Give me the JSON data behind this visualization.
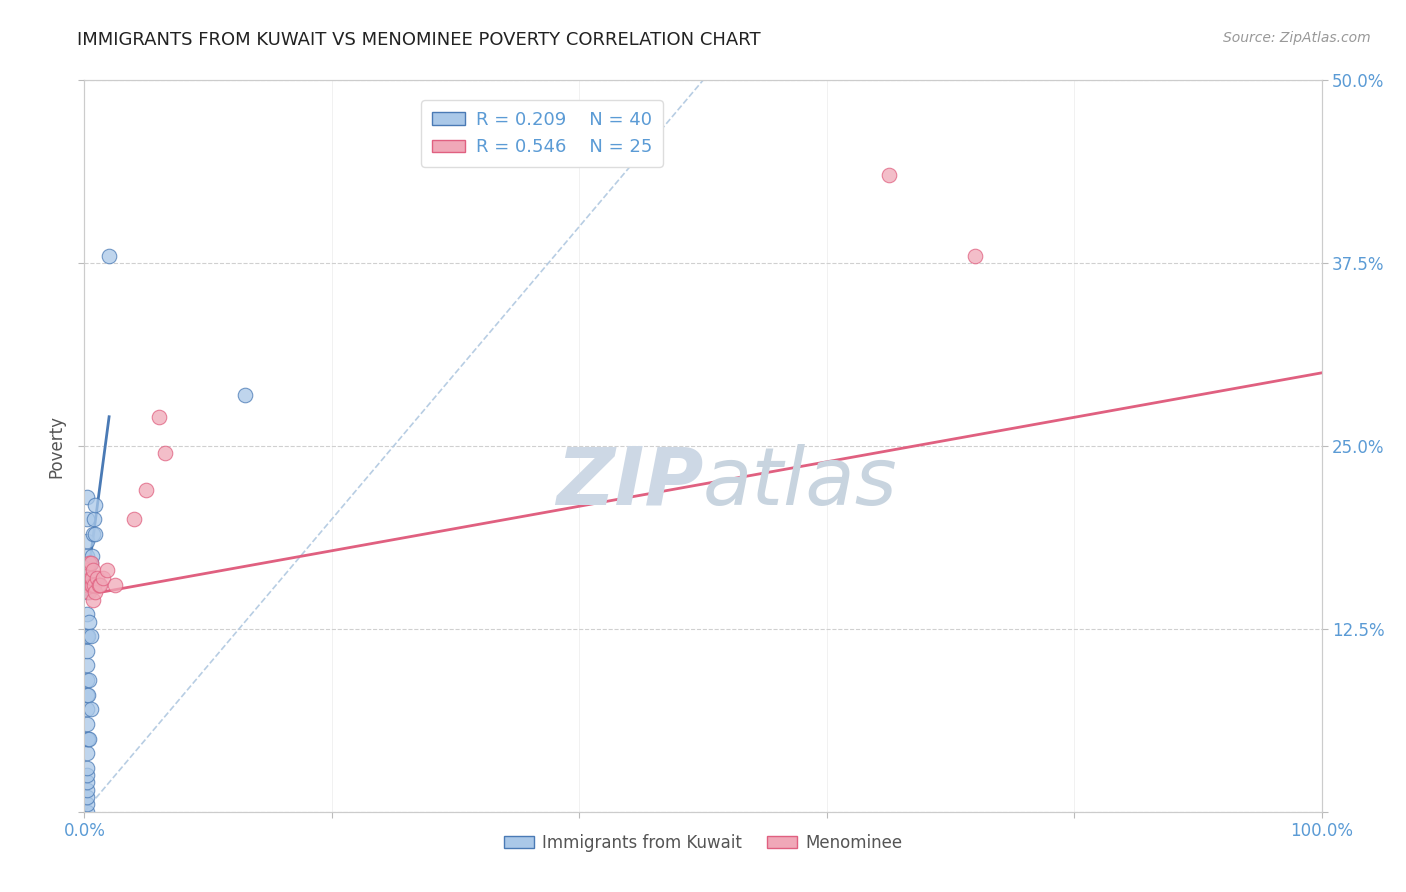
{
  "title": "IMMIGRANTS FROM KUWAIT VS MENOMINEE POVERTY CORRELATION CHART",
  "source": "Source: ZipAtlas.com",
  "ylabel": "Poverty",
  "xlim": [
    0.0,
    1.0
  ],
  "ylim": [
    0.0,
    0.5
  ],
  "yticks": [
    0.0,
    0.125,
    0.25,
    0.375,
    0.5
  ],
  "ytick_labels_right": [
    "",
    "12.5%",
    "25.0%",
    "37.5%",
    "50.0%"
  ],
  "xticks": [
    0.0,
    0.2,
    0.4,
    0.6,
    0.8,
    1.0
  ],
  "xtick_labels": [
    "0.0%",
    "",
    "",
    "",
    "",
    "100.0%"
  ],
  "legend_r1": "R = 0.209",
  "legend_n1": "N = 40",
  "legend_r2": "R = 0.546",
  "legend_n2": "N = 25",
  "blue_color": "#aac8e8",
  "pink_color": "#f0a8b8",
  "blue_line_color": "#4a7ab5",
  "pink_line_color": "#e06080",
  "dashed_line_color": "#b0c8e0",
  "axis_color": "#5b9bd5",
  "grid_color": "#d0d0d0",
  "background_color": "#ffffff",
  "watermark_color": "#cdd8e5",
  "blue_scatter_x": [
    0.002,
    0.002,
    0.002,
    0.002,
    0.002,
    0.002,
    0.002,
    0.002,
    0.002,
    0.002,
    0.002,
    0.002,
    0.002,
    0.002,
    0.002,
    0.002,
    0.002,
    0.002,
    0.002,
    0.002,
    0.002,
    0.002,
    0.002,
    0.003,
    0.003,
    0.003,
    0.004,
    0.004,
    0.004,
    0.004,
    0.005,
    0.005,
    0.005,
    0.006,
    0.007,
    0.008,
    0.009,
    0.009,
    0.02,
    0.13
  ],
  "blue_scatter_y": [
    0.0,
    0.005,
    0.01,
    0.015,
    0.02,
    0.025,
    0.03,
    0.04,
    0.05,
    0.06,
    0.07,
    0.08,
    0.09,
    0.1,
    0.11,
    0.12,
    0.135,
    0.15,
    0.165,
    0.175,
    0.185,
    0.2,
    0.215,
    0.05,
    0.08,
    0.12,
    0.05,
    0.09,
    0.13,
    0.17,
    0.07,
    0.12,
    0.17,
    0.175,
    0.19,
    0.2,
    0.19,
    0.21,
    0.38,
    0.285
  ],
  "pink_scatter_x": [
    0.002,
    0.003,
    0.004,
    0.004,
    0.005,
    0.005,
    0.005,
    0.006,
    0.006,
    0.007,
    0.007,
    0.008,
    0.009,
    0.01,
    0.012,
    0.013,
    0.015,
    0.018,
    0.025,
    0.04,
    0.05,
    0.06,
    0.065,
    0.65,
    0.72
  ],
  "pink_scatter_y": [
    0.155,
    0.165,
    0.15,
    0.17,
    0.155,
    0.16,
    0.17,
    0.155,
    0.16,
    0.145,
    0.165,
    0.155,
    0.15,
    0.16,
    0.155,
    0.155,
    0.16,
    0.165,
    0.155,
    0.2,
    0.22,
    0.27,
    0.245,
    0.435,
    0.38
  ],
  "blue_trend_x": [
    0.002,
    0.02
  ],
  "blue_trend_y": [
    0.155,
    0.27
  ],
  "pink_trend_x": [
    0.0,
    1.0
  ],
  "pink_trend_y": [
    0.148,
    0.3
  ],
  "dashed_trend_x": [
    0.0,
    0.5
  ],
  "dashed_trend_y": [
    0.0,
    0.5
  ]
}
